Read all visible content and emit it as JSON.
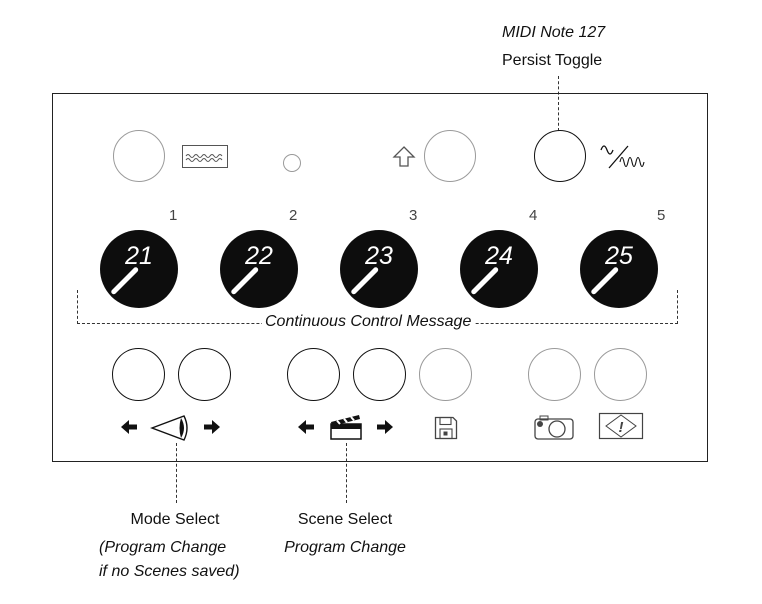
{
  "top_annotation": {
    "line1": "MIDI Note 127",
    "line2": "Persist Toggle"
  },
  "knobs": [
    {
      "cc": "21",
      "index": "1"
    },
    {
      "cc": "22",
      "index": "2"
    },
    {
      "cc": "23",
      "index": "3"
    },
    {
      "cc": "24",
      "index": "4"
    },
    {
      "cc": "25",
      "index": "5"
    }
  ],
  "cc_message_label": "Continuous Control Message",
  "mode_select": {
    "title": "Mode Select",
    "note_line1": "(Program Change",
    "note_line2": "if no Scenes saved)"
  },
  "scene_select": {
    "title": "Scene Select",
    "note": "Program Change"
  },
  "icons": [
    "waveform-icon",
    "led-icon",
    "shift-arrow-icon",
    "noise-wave-icon",
    "left-arrow-icon",
    "eye-icon",
    "right-arrow-icon",
    "clapperboard-icon",
    "save-floppy-icon",
    "camera-icon",
    "alert-icon"
  ]
}
